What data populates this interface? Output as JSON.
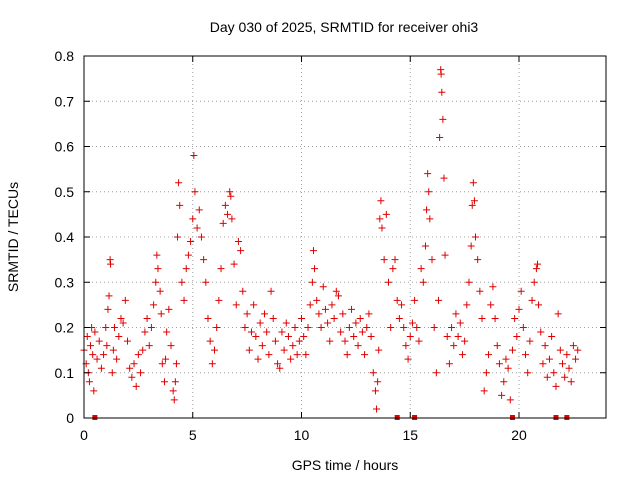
{
  "chart_data": {
    "type": "scatter",
    "title": "Day 030 of 2025, SRMTID for receiver ohi3",
    "xlabel": "GPS time / hours",
    "ylabel": "SRMTID / TECUs",
    "xlim": [
      0,
      24
    ],
    "ylim": [
      0,
      0.8
    ],
    "x_ticks": [
      0,
      5,
      10,
      15,
      20
    ],
    "x_tick_labels": [
      "0",
      "5",
      "10",
      "15",
      "20"
    ],
    "y_ticks": [
      0,
      0.1,
      0.2,
      0.3,
      0.4,
      0.5,
      0.6,
      0.7,
      0.8
    ],
    "y_tick_labels": [
      "0",
      "0.1",
      "0.2",
      "0.3",
      "0.4",
      "0.5",
      "0.6",
      "0.7",
      "0.8"
    ],
    "grid": true,
    "marker": "+",
    "color": "#e00000",
    "series": [
      {
        "name": "SRMTID",
        "points": [
          [
            0.0,
            0.15
          ],
          [
            0.1,
            0.12
          ],
          [
            0.15,
            0.18
          ],
          [
            0.2,
            0.1
          ],
          [
            0.25,
            0.08
          ],
          [
            0.3,
            0.16
          ],
          [
            0.35,
            0.2
          ],
          [
            0.4,
            0.14
          ],
          [
            0.45,
            0.06
          ],
          [
            0.5,
            0.19
          ],
          [
            0.6,
            0.13
          ],
          [
            0.7,
            0.17
          ],
          [
            0.8,
            0.11
          ],
          [
            0.9,
            0.14
          ],
          [
            1.0,
            0.2
          ],
          [
            1.05,
            0.16
          ],
          [
            1.1,
            0.24
          ],
          [
            1.15,
            0.27
          ],
          [
            1.2,
            0.35
          ],
          [
            1.22,
            0.34
          ],
          [
            1.3,
            0.1
          ],
          [
            1.35,
            0.15
          ],
          [
            1.4,
            0.2
          ],
          [
            1.5,
            0.13
          ],
          [
            1.6,
            0.18
          ],
          [
            1.7,
            0.22
          ],
          [
            1.8,
            0.21
          ],
          [
            1.9,
            0.26
          ],
          [
            2.0,
            0.17
          ],
          [
            2.1,
            0.11
          ],
          [
            2.2,
            0.09
          ],
          [
            2.3,
            0.12
          ],
          [
            2.4,
            0.07
          ],
          [
            2.5,
            0.14
          ],
          [
            2.6,
            0.1
          ],
          [
            2.7,
            0.15
          ],
          [
            2.8,
            0.19
          ],
          [
            2.9,
            0.22
          ],
          [
            3.0,
            0.16
          ],
          [
            3.1,
            0.2
          ],
          [
            3.2,
            0.25
          ],
          [
            3.3,
            0.3
          ],
          [
            3.35,
            0.36
          ],
          [
            3.4,
            0.33
          ],
          [
            3.5,
            0.28
          ],
          [
            3.55,
            0.23
          ],
          [
            3.6,
            0.12
          ],
          [
            3.7,
            0.08
          ],
          [
            3.75,
            0.13
          ],
          [
            3.8,
            0.19
          ],
          [
            3.9,
            0.24
          ],
          [
            4.0,
            0.16
          ],
          [
            4.1,
            0.06
          ],
          [
            4.15,
            0.04
          ],
          [
            4.2,
            0.08
          ],
          [
            4.25,
            0.12
          ],
          [
            4.3,
            0.4
          ],
          [
            4.35,
            0.52
          ],
          [
            4.4,
            0.47
          ],
          [
            4.5,
            0.3
          ],
          [
            4.6,
            0.26
          ],
          [
            4.7,
            0.33
          ],
          [
            4.8,
            0.36
          ],
          [
            4.9,
            0.39
          ],
          [
            5.0,
            0.44
          ],
          [
            5.05,
            0.58
          ],
          [
            5.1,
            0.5
          ],
          [
            5.2,
            0.42
          ],
          [
            5.3,
            0.46
          ],
          [
            5.4,
            0.4
          ],
          [
            5.5,
            0.35
          ],
          [
            5.6,
            0.3
          ],
          [
            5.7,
            0.22
          ],
          [
            5.8,
            0.17
          ],
          [
            5.9,
            0.12
          ],
          [
            6.0,
            0.15
          ],
          [
            6.1,
            0.2
          ],
          [
            6.2,
            0.26
          ],
          [
            6.3,
            0.33
          ],
          [
            6.4,
            0.43
          ],
          [
            6.5,
            0.47
          ],
          [
            6.6,
            0.45
          ],
          [
            6.7,
            0.5
          ],
          [
            6.75,
            0.49
          ],
          [
            6.8,
            0.44
          ],
          [
            6.9,
            0.34
          ],
          [
            7.0,
            0.25
          ],
          [
            7.1,
            0.39
          ],
          [
            7.2,
            0.37
          ],
          [
            7.3,
            0.28
          ],
          [
            7.4,
            0.2
          ],
          [
            7.5,
            0.23
          ],
          [
            7.6,
            0.15
          ],
          [
            7.7,
            0.19
          ],
          [
            7.8,
            0.25
          ],
          [
            7.9,
            0.18
          ],
          [
            8.0,
            0.13
          ],
          [
            8.1,
            0.21
          ],
          [
            8.2,
            0.16
          ],
          [
            8.3,
            0.23
          ],
          [
            8.4,
            0.19
          ],
          [
            8.5,
            0.14
          ],
          [
            8.6,
            0.28
          ],
          [
            8.7,
            0.22
          ],
          [
            8.8,
            0.17
          ],
          [
            8.9,
            0.12
          ],
          [
            9.0,
            0.11
          ],
          [
            9.1,
            0.19
          ],
          [
            9.2,
            0.15
          ],
          [
            9.3,
            0.21
          ],
          [
            9.4,
            0.18
          ],
          [
            9.5,
            0.13
          ],
          [
            9.6,
            0.16
          ],
          [
            9.7,
            0.2
          ],
          [
            9.8,
            0.14
          ],
          [
            9.9,
            0.17
          ],
          [
            10.0,
            0.22
          ],
          [
            10.1,
            0.18
          ],
          [
            10.2,
            0.14
          ],
          [
            10.3,
            0.2
          ],
          [
            10.4,
            0.25
          ],
          [
            10.5,
            0.3
          ],
          [
            10.55,
            0.37
          ],
          [
            10.6,
            0.33
          ],
          [
            10.7,
            0.26
          ],
          [
            10.8,
            0.23
          ],
          [
            10.9,
            0.2
          ],
          [
            11.0,
            0.29
          ],
          [
            11.1,
            0.24
          ],
          [
            11.2,
            0.21
          ],
          [
            11.3,
            0.17
          ],
          [
            11.4,
            0.25
          ],
          [
            11.5,
            0.22
          ],
          [
            11.6,
            0.28
          ],
          [
            11.7,
            0.27
          ],
          [
            11.8,
            0.19
          ],
          [
            11.9,
            0.23
          ],
          [
            12.0,
            0.17
          ],
          [
            12.1,
            0.14
          ],
          [
            12.2,
            0.2
          ],
          [
            12.3,
            0.24
          ],
          [
            12.4,
            0.18
          ],
          [
            12.5,
            0.21
          ],
          [
            12.6,
            0.16
          ],
          [
            12.7,
            0.22
          ],
          [
            12.8,
            0.19
          ],
          [
            12.9,
            0.14
          ],
          [
            13.0,
            0.2
          ],
          [
            13.1,
            0.23
          ],
          [
            13.2,
            0.18
          ],
          [
            13.3,
            0.1
          ],
          [
            13.4,
            0.06
          ],
          [
            13.45,
            0.02
          ],
          [
            13.5,
            0.08
          ],
          [
            13.55,
            0.15
          ],
          [
            13.6,
            0.44
          ],
          [
            13.65,
            0.48
          ],
          [
            13.7,
            0.42
          ],
          [
            13.8,
            0.35
          ],
          [
            13.9,
            0.45
          ],
          [
            14.0,
            0.3
          ],
          [
            14.1,
            0.2
          ],
          [
            14.2,
            0.33
          ],
          [
            14.3,
            0.35
          ],
          [
            14.4,
            0.26
          ],
          [
            14.5,
            0.22
          ],
          [
            14.6,
            0.25
          ],
          [
            14.7,
            0.2
          ],
          [
            14.8,
            0.16
          ],
          [
            14.9,
            0.13
          ],
          [
            15.0,
            0.18
          ],
          [
            15.1,
            0.21
          ],
          [
            15.2,
            0.26
          ],
          [
            15.3,
            0.2
          ],
          [
            15.4,
            0.17
          ],
          [
            15.5,
            0.33
          ],
          [
            15.6,
            0.3
          ],
          [
            15.7,
            0.38
          ],
          [
            15.75,
            0.46
          ],
          [
            15.8,
            0.54
          ],
          [
            15.85,
            0.5
          ],
          [
            15.9,
            0.44
          ],
          [
            16.0,
            0.35
          ],
          [
            16.1,
            0.2
          ],
          [
            16.2,
            0.1
          ],
          [
            16.3,
            0.26
          ],
          [
            16.35,
            0.62
          ],
          [
            16.4,
            0.77
          ],
          [
            16.42,
            0.76
          ],
          [
            16.45,
            0.72
          ],
          [
            16.5,
            0.66
          ],
          [
            16.55,
            0.53
          ],
          [
            16.6,
            0.36
          ],
          [
            16.7,
            0.18
          ],
          [
            16.8,
            0.12
          ],
          [
            16.9,
            0.2
          ],
          [
            17.0,
            0.16
          ],
          [
            17.1,
            0.23
          ],
          [
            17.2,
            0.18
          ],
          [
            17.3,
            0.21
          ],
          [
            17.4,
            0.14
          ],
          [
            17.5,
            0.17
          ],
          [
            17.6,
            0.25
          ],
          [
            17.7,
            0.3
          ],
          [
            17.8,
            0.38
          ],
          [
            17.85,
            0.47
          ],
          [
            17.9,
            0.52
          ],
          [
            17.95,
            0.48
          ],
          [
            18.0,
            0.4
          ],
          [
            18.1,
            0.35
          ],
          [
            18.2,
            0.28
          ],
          [
            18.3,
            0.22
          ],
          [
            18.4,
            0.06
          ],
          [
            18.5,
            0.1
          ],
          [
            18.6,
            0.14
          ],
          [
            18.7,
            0.25
          ],
          [
            18.8,
            0.29
          ],
          [
            18.9,
            0.22
          ],
          [
            19.0,
            0.16
          ],
          [
            19.1,
            0.12
          ],
          [
            19.2,
            0.05
          ],
          [
            19.3,
            0.08
          ],
          [
            19.4,
            0.13
          ],
          [
            19.5,
            0.11
          ],
          [
            19.6,
            0.04
          ],
          [
            19.7,
            0.15
          ],
          [
            19.8,
            0.22
          ],
          [
            19.9,
            0.18
          ],
          [
            20.0,
            0.24
          ],
          [
            20.1,
            0.28
          ],
          [
            20.2,
            0.2
          ],
          [
            20.3,
            0.14
          ],
          [
            20.4,
            0.1
          ],
          [
            20.5,
            0.17
          ],
          [
            20.6,
            0.26
          ],
          [
            20.7,
            0.3
          ],
          [
            20.8,
            0.33
          ],
          [
            20.85,
            0.34
          ],
          [
            20.9,
            0.25
          ],
          [
            21.0,
            0.19
          ],
          [
            21.1,
            0.12
          ],
          [
            21.2,
            0.16
          ],
          [
            21.3,
            0.09
          ],
          [
            21.4,
            0.13
          ],
          [
            21.5,
            0.18
          ],
          [
            21.6,
            0.1
          ],
          [
            21.7,
            0.07
          ],
          [
            21.8,
            0.23
          ],
          [
            21.9,
            0.15
          ],
          [
            22.0,
            0.12
          ],
          [
            22.1,
            0.09
          ],
          [
            22.2,
            0.14
          ],
          [
            22.3,
            0.11
          ],
          [
            22.4,
            0.08
          ],
          [
            22.5,
            0.16
          ],
          [
            22.6,
            0.13
          ],
          [
            22.7,
            0.15
          ]
        ]
      }
    ],
    "gap_markers_x": [
      0.5,
      14.4,
      15.2,
      19.7,
      21.7,
      22.2
    ]
  }
}
